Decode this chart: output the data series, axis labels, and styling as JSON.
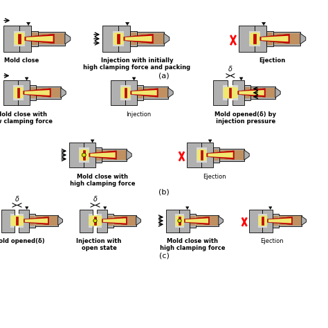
{
  "bg": "#ffffff",
  "gray": "#b0b0b0",
  "lgray": "#d8d8d8",
  "yellow": "#f0e870",
  "red": "#cc0000",
  "dred": "#880000",
  "purple": "#660066",
  "captions": {
    "a1": "Mold close",
    "a2": "Injection with initially\nhigh clamping force and packing",
    "a3": "Ejection",
    "b1": "Mold close with\nlow clamping force",
    "b2": "Injection",
    "b3": "Mold opened(δ) by\ninjection pressure",
    "b4": "Mold close with\nhigh clamping force",
    "b5": "Ejection",
    "c1": "Mold opened(δ)",
    "c2": "Injection with\nopen state",
    "c3": "Mold close with\nhigh clamping force",
    "c4": "Ejection"
  },
  "row_labels": [
    "(a)",
    "(b)",
    "(c)"
  ]
}
